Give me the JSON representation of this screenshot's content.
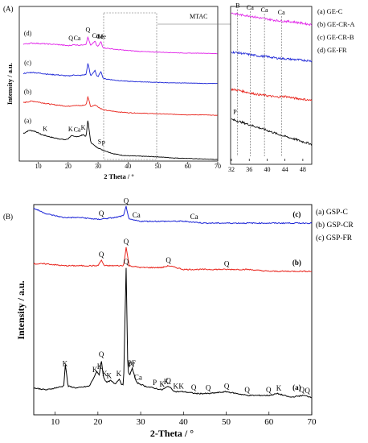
{
  "chart_data": [
    {
      "type": "line",
      "panel_label": "(A)",
      "xlabel": "2 Theta / °",
      "ylabel": "Intensity / a.u.",
      "xlim": [
        5,
        70
      ],
      "xticks": [
        10,
        20,
        30,
        40,
        50,
        60,
        70
      ],
      "inset_label": "MTAC",
      "legend": [
        "(a) GE-C",
        "(b) GE-CR-A",
        "(c) GE-CR-B",
        "(d) GE-FR"
      ],
      "series": [
        {
          "curve_label": "(a)",
          "color": "#000000",
          "offset": 0,
          "x": [
            5,
            7,
            9,
            11,
            13,
            15,
            17,
            19,
            20,
            21,
            22,
            24,
            25,
            26,
            26.6,
            27.5,
            29,
            31,
            33,
            35,
            38,
            40,
            45,
            50,
            55,
            60,
            65,
            70
          ],
          "y": [
            0.52,
            0.58,
            0.56,
            0.5,
            0.47,
            0.44,
            0.42,
            0.4,
            0.42,
            0.48,
            0.46,
            0.47,
            0.5,
            0.46,
            0.78,
            0.36,
            0.28,
            0.22,
            0.18,
            0.14,
            0.11,
            0.1,
            0.09,
            0.08,
            0.06,
            0.05,
            0.04,
            0.03
          ]
        },
        {
          "curve_label": "(b)",
          "color": "#e8231b",
          "offset": 0.8,
          "x": [
            5,
            8,
            11,
            14,
            17,
            20,
            22,
            24,
            26,
            26.6,
            27.5,
            29,
            30.5,
            32,
            36,
            40,
            45,
            50,
            55,
            60,
            65,
            70
          ],
          "y": [
            0.3,
            0.33,
            0.3,
            0.27,
            0.25,
            0.23,
            0.25,
            0.24,
            0.26,
            0.42,
            0.22,
            0.26,
            0.2,
            0.16,
            0.13,
            0.11,
            0.1,
            0.09,
            0.08,
            0.07,
            0.07,
            0.06
          ]
        },
        {
          "curve_label": "(c)",
          "color": "#1a23d6",
          "offset": 1.35,
          "x": [
            5,
            8,
            11,
            14,
            17,
            20,
            22,
            24,
            26,
            26.6,
            27.5,
            29,
            29.5,
            30,
            31,
            31.5,
            32,
            36,
            40,
            45,
            50,
            55,
            60,
            65,
            70
          ],
          "y": [
            0.3,
            0.32,
            0.3,
            0.28,
            0.27,
            0.25,
            0.27,
            0.26,
            0.28,
            0.5,
            0.25,
            0.36,
            0.25,
            0.24,
            0.34,
            0.23,
            0.2,
            0.17,
            0.15,
            0.14,
            0.13,
            0.12,
            0.12,
            0.11,
            0.11
          ]
        },
        {
          "curve_label": "(d)",
          "color": "#e020e8",
          "offset": 1.9,
          "x": [
            5,
            8,
            11,
            14,
            17,
            20,
            22,
            24,
            26,
            26.6,
            27.5,
            29,
            29.5,
            30,
            31,
            31.5,
            32,
            36,
            40,
            45,
            50,
            55,
            60,
            65,
            70
          ],
          "y": [
            0.3,
            0.32,
            0.31,
            0.3,
            0.29,
            0.27,
            0.29,
            0.28,
            0.3,
            0.44,
            0.27,
            0.36,
            0.27,
            0.26,
            0.35,
            0.25,
            0.23,
            0.2,
            0.18,
            0.16,
            0.15,
            0.14,
            0.13,
            0.13,
            0.12
          ]
        }
      ],
      "peak_labels": [
        {
          "text": "(a)",
          "x": 6.5,
          "curve": 0
        },
        {
          "text": "K",
          "x": 12.3,
          "curve": 0
        },
        {
          "text": "K",
          "x": 20.8,
          "curve": 0
        },
        {
          "text": "Ca",
          "x": 23.0,
          "curve": 0
        },
        {
          "text": "K",
          "x": 25.0,
          "curve": 0
        },
        {
          "text": "S",
          "x": 30.5,
          "curve": 0
        },
        {
          "text": "P",
          "x": 31.8,
          "curve": 0
        },
        {
          "text": "(b)",
          "x": 6.5,
          "curve": 1
        },
        {
          "text": "(c)",
          "x": 6.5,
          "curve": 2
        },
        {
          "text": "(d)",
          "x": 6.5,
          "curve": 3
        },
        {
          "text": "Q",
          "x": 20.9,
          "curve": 3
        },
        {
          "text": "Ca",
          "x": 23.0,
          "curve": 3
        },
        {
          "text": "Q",
          "x": 26.6,
          "curve": 3
        },
        {
          "text": "Ca",
          "x": 29.2,
          "curve": 3
        },
        {
          "text": "Me",
          "x": 31.2,
          "curve": 3
        },
        {
          "text": "Ge",
          "x": 30.6,
          "curve": 3
        }
      ]
    },
    {
      "type": "line",
      "panel_label": "MTAC inset",
      "xlim": [
        32,
        50
      ],
      "xticks": [
        32,
        36,
        40,
        44,
        48
      ],
      "series": [
        {
          "curve_label": "(a)",
          "color": "#000000",
          "offset": 0,
          "x": [
            32,
            34,
            36,
            38,
            40,
            42,
            44,
            46,
            48,
            50
          ],
          "y": [
            0.95,
            0.88,
            0.8,
            0.72,
            0.64,
            0.55,
            0.47,
            0.4,
            0.32,
            0.25
          ]
        },
        {
          "curve_label": "(b)",
          "color": "#e8231b",
          "offset": 1,
          "x": [
            32,
            34,
            36,
            38,
            40,
            42,
            44,
            46,
            48,
            50
          ],
          "y": [
            0.8,
            0.76,
            0.7,
            0.65,
            0.62,
            0.58,
            0.6,
            0.55,
            0.52,
            0.48
          ]
        },
        {
          "curve_label": "(c)",
          "color": "#1a23d6",
          "offset": 2,
          "x": [
            32,
            34,
            36,
            38,
            40,
            42,
            44,
            46,
            48,
            50
          ],
          "y": [
            0.85,
            0.82,
            0.78,
            0.74,
            0.72,
            0.68,
            0.66,
            0.64,
            0.62,
            0.6
          ]
        },
        {
          "curve_label": "(d)",
          "color": "#e020e8",
          "offset": 3,
          "x": [
            32,
            34,
            36,
            38,
            40,
            42,
            44,
            46,
            48,
            50
          ],
          "y": [
            0.95,
            0.9,
            0.87,
            0.82,
            0.78,
            0.74,
            0.72,
            0.7,
            0.66,
            0.62
          ]
        }
      ],
      "peak_labels": [
        {
          "text": "B",
          "x": 33.4,
          "curve": 3
        },
        {
          "text": "Ca",
          "x": 36.2,
          "curve": 3
        },
        {
          "text": "Ca",
          "x": 39.4,
          "curve": 3
        },
        {
          "text": "Ca",
          "x": 43.2,
          "curve": 3
        },
        {
          "text": "P",
          "x": 32.8,
          "curve": 0
        }
      ]
    },
    {
      "type": "line",
      "panel_label": "(B)",
      "xlabel": "2-Theta / °",
      "ylabel": "Intensity / a.u.",
      "xlim": [
        5,
        70
      ],
      "xticks": [
        10,
        20,
        30,
        40,
        50,
        60,
        70
      ],
      "legend": [
        "(a) GSP-C",
        "(b) GSP-CR",
        "(c) GSP-FR"
      ],
      "series": [
        {
          "curve_label": "(a)",
          "color": "#000000",
          "offset": 0,
          "x": [
            5,
            8,
            10,
            12,
            12.4,
            13,
            15,
            18,
            19.8,
            20.3,
            20.8,
            21.3,
            22,
            23,
            24,
            25,
            25.5,
            26,
            26.6,
            27,
            27.5,
            28,
            29,
            31,
            33,
            35,
            36.5,
            38,
            40,
            43,
            46,
            50,
            55,
            60,
            62,
            65,
            68,
            70
          ],
          "y": [
            0.11,
            0.1,
            0.11,
            0.12,
            0.24,
            0.12,
            0.11,
            0.12,
            0.2,
            0.18,
            0.26,
            0.17,
            0.14,
            0.15,
            0.13,
            0.16,
            0.13,
            0.13,
            0.76,
            0.2,
            0.18,
            0.22,
            0.14,
            0.12,
            0.11,
            0.1,
            0.12,
            0.09,
            0.09,
            0.08,
            0.08,
            0.09,
            0.07,
            0.07,
            0.08,
            0.06,
            0.07,
            0.06
          ]
        },
        {
          "curve_label": "(b)",
          "color": "#e8231b",
          "offset": 0.72,
          "x": [
            5,
            8,
            12,
            16,
            20,
            20.8,
            21.5,
            24,
            26,
            26.6,
            27.3,
            30,
            35,
            36.5,
            40,
            45,
            50,
            55,
            60,
            65,
            70
          ],
          "y": [
            0.06,
            0.06,
            0.05,
            0.05,
            0.05,
            0.08,
            0.05,
            0.05,
            0.05,
            0.15,
            0.05,
            0.04,
            0.04,
            0.05,
            0.03,
            0.03,
            0.03,
            0.03,
            0.02,
            0.02,
            0.02
          ]
        },
        {
          "curve_label": "(c)",
          "color": "#1a23d6",
          "offset": 0.98,
          "x": [
            5,
            8,
            12,
            16,
            20,
            24,
            26,
            26.6,
            27.3,
            30,
            35,
            40,
            45,
            50,
            55,
            60,
            65,
            70
          ],
          "y": [
            0.1,
            0.07,
            0.05,
            0.05,
            0.04,
            0.05,
            0.06,
            0.11,
            0.04,
            0.03,
            0.03,
            0.03,
            0.02,
            0.02,
            0.02,
            0.02,
            0.02,
            0.02
          ]
        }
      ],
      "peak_labels": [
        {
          "text": "(a)",
          "x": 66.5,
          "curve": 0
        },
        {
          "text": "K",
          "x": 12.3,
          "curve": 0
        },
        {
          "text": "K",
          "x": 19.3,
          "curve": 0
        },
        {
          "text": "Q",
          "x": 20.8,
          "curve": 0
        },
        {
          "text": "K",
          "x": 20.4,
          "curve": 0
        },
        {
          "text": "K",
          "x": 21.6,
          "curve": 0
        },
        {
          "text": "K",
          "x": 22.6,
          "curve": 0
        },
        {
          "text": "K",
          "x": 24.9,
          "curve": 0
        },
        {
          "text": "Q",
          "x": 26.6,
          "curve": 0
        },
        {
          "text": "PF",
          "x": 27.9,
          "curve": 0
        },
        {
          "text": "Pl",
          "x": 27.8,
          "curve": 0
        },
        {
          "text": "Ca",
          "x": 29.4,
          "curve": 0
        },
        {
          "text": "P",
          "x": 33.3,
          "curve": 0
        },
        {
          "text": "K",
          "x": 35.0,
          "curve": 0
        },
        {
          "text": "Q",
          "x": 36.5,
          "curve": 0
        },
        {
          "text": "K",
          "x": 36.0,
          "curve": 0
        },
        {
          "text": "K",
          "x": 38.2,
          "curve": 0
        },
        {
          "text": "K",
          "x": 39.5,
          "curve": 0
        },
        {
          "text": "Q",
          "x": 42.4,
          "curve": 0
        },
        {
          "text": "Q",
          "x": 45.8,
          "curve": 0
        },
        {
          "text": "Q",
          "x": 50.1,
          "curve": 0
        },
        {
          "text": "Q",
          "x": 54.9,
          "curve": 0
        },
        {
          "text": "Q",
          "x": 59.9,
          "curve": 0
        },
        {
          "text": "K",
          "x": 62.3,
          "curve": 0
        },
        {
          "text": "Q",
          "x": 67.7,
          "curve": 0
        },
        {
          "text": "Q",
          "x": 69.0,
          "curve": 0
        },
        {
          "text": "(b)",
          "x": 66.5,
          "curve": 1
        },
        {
          "text": "Q",
          "x": 20.8,
          "curve": 1
        },
        {
          "text": "Q",
          "x": 26.6,
          "curve": 1
        },
        {
          "text": "Q",
          "x": 36.5,
          "curve": 1
        },
        {
          "text": "Q",
          "x": 50.1,
          "curve": 1
        },
        {
          "text": "(c)",
          "x": 66.5,
          "curve": 2
        },
        {
          "text": "Q",
          "x": 20.8,
          "curve": 2
        },
        {
          "text": "Q",
          "x": 26.6,
          "curve": 2
        },
        {
          "text": "Ca",
          "x": 29.0,
          "curve": 2
        },
        {
          "text": "Ca",
          "x": 42.5,
          "curve": 2
        }
      ]
    }
  ]
}
